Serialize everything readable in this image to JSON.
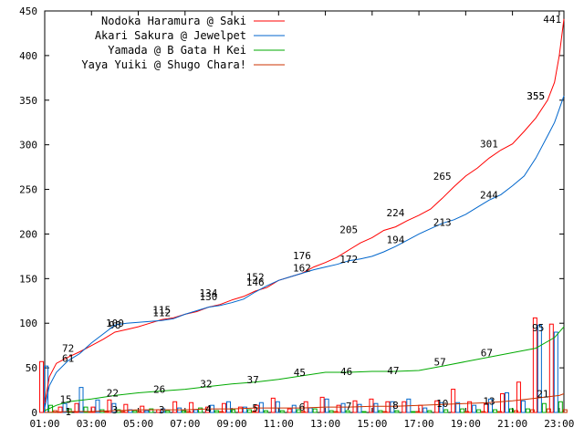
{
  "chart_data": {
    "type": "line",
    "title": "",
    "xlabel": "",
    "ylabel": "",
    "ylim": [
      0,
      450
    ],
    "yticks": [
      0,
      50,
      100,
      150,
      200,
      250,
      300,
      350,
      400,
      450
    ],
    "xlim": [
      1,
      23.2
    ],
    "xticks": [
      {
        "t": 1,
        "label": "01:00"
      },
      {
        "t": 3,
        "label": "03:00"
      },
      {
        "t": 5,
        "label": "05:00"
      },
      {
        "t": 7,
        "label": "07:00"
      },
      {
        "t": 9,
        "label": "09:00"
      },
      {
        "t": 11,
        "label": "11:00"
      },
      {
        "t": 13,
        "label": "13:00"
      },
      {
        "t": 15,
        "label": "15:00"
      },
      {
        "t": 17,
        "label": "17:00"
      },
      {
        "t": 19,
        "label": "19:00"
      },
      {
        "t": 21,
        "label": "21:00"
      },
      {
        "t": 23,
        "label": "23:00"
      }
    ],
    "grid": false,
    "legend_position": "top-left",
    "series": [
      {
        "name": "Nodoka Haramura @ Saki",
        "color": "#ff0000",
        "points": [
          [
            1.0,
            10
          ],
          [
            1.2,
            40
          ],
          [
            1.5,
            55
          ],
          [
            2.0,
            62
          ],
          [
            2.5,
            68
          ],
          [
            3.0,
            75
          ],
          [
            3.5,
            82
          ],
          [
            4.0,
            90
          ],
          [
            4.5,
            93
          ],
          [
            5.0,
            96
          ],
          [
            5.5,
            100
          ],
          [
            6.0,
            104
          ],
          [
            6.5,
            106
          ],
          [
            7.0,
            110
          ],
          [
            7.5,
            113
          ],
          [
            8.0,
            118
          ],
          [
            8.5,
            121
          ],
          [
            9.0,
            126
          ],
          [
            9.5,
            130
          ],
          [
            10.0,
            136
          ],
          [
            10.5,
            140
          ],
          [
            11.0,
            148
          ],
          [
            11.5,
            152
          ],
          [
            12.0,
            156
          ],
          [
            12.5,
            163
          ],
          [
            13.0,
            168
          ],
          [
            13.5,
            174
          ],
          [
            14.0,
            182
          ],
          [
            14.5,
            190
          ],
          [
            15.0,
            196
          ],
          [
            15.5,
            204
          ],
          [
            16.0,
            208
          ],
          [
            16.5,
            215
          ],
          [
            17.0,
            221
          ],
          [
            17.5,
            228
          ],
          [
            18.0,
            240
          ],
          [
            18.5,
            253
          ],
          [
            19.0,
            265
          ],
          [
            19.5,
            274
          ],
          [
            20.0,
            285
          ],
          [
            20.5,
            294
          ],
          [
            21.0,
            301
          ],
          [
            21.5,
            315
          ],
          [
            22.0,
            330
          ],
          [
            22.5,
            350
          ],
          [
            22.8,
            370
          ],
          [
            23.0,
            400
          ],
          [
            23.2,
            441
          ]
        ],
        "labels": [
          [
            2.0,
            72
          ],
          [
            4.0,
            98
          ],
          [
            6.0,
            115
          ],
          [
            8.0,
            134
          ],
          [
            10.0,
            152
          ],
          [
            12.0,
            176
          ],
          [
            14.0,
            205
          ],
          [
            16.0,
            224
          ],
          [
            18.0,
            265
          ],
          [
            20.0,
            301
          ],
          [
            22.0,
            355
          ],
          [
            22.7,
            441
          ]
        ]
      },
      {
        "name": "Akari Sakura @ Jewelpet",
        "color": "#0066cc",
        "points": [
          [
            1.0,
            5
          ],
          [
            1.2,
            30
          ],
          [
            1.5,
            45
          ],
          [
            2.0,
            58
          ],
          [
            2.5,
            66
          ],
          [
            3.0,
            78
          ],
          [
            3.5,
            88
          ],
          [
            4.0,
            98
          ],
          [
            4.5,
            100
          ],
          [
            5.0,
            101
          ],
          [
            5.5,
            102
          ],
          [
            6.0,
            103
          ],
          [
            6.5,
            105
          ],
          [
            7.0,
            110
          ],
          [
            7.5,
            114
          ],
          [
            8.0,
            118
          ],
          [
            8.5,
            120
          ],
          [
            9.0,
            123
          ],
          [
            9.5,
            127
          ],
          [
            10.0,
            135
          ],
          [
            10.5,
            142
          ],
          [
            11.0,
            148
          ],
          [
            11.5,
            152
          ],
          [
            12.0,
            156
          ],
          [
            12.5,
            160
          ],
          [
            13.0,
            163
          ],
          [
            13.5,
            166
          ],
          [
            14.0,
            170
          ],
          [
            14.5,
            172
          ],
          [
            15.0,
            175
          ],
          [
            15.5,
            180
          ],
          [
            16.0,
            186
          ],
          [
            16.5,
            193
          ],
          [
            17.0,
            200
          ],
          [
            17.5,
            206
          ],
          [
            18.0,
            212
          ],
          [
            18.5,
            216
          ],
          [
            19.0,
            222
          ],
          [
            19.5,
            230
          ],
          [
            20.0,
            238
          ],
          [
            20.5,
            244
          ],
          [
            21.0,
            254
          ],
          [
            21.5,
            265
          ],
          [
            22.0,
            285
          ],
          [
            22.5,
            310
          ],
          [
            22.8,
            325
          ],
          [
            23.0,
            340
          ],
          [
            23.2,
            355
          ]
        ],
        "labels": [
          [
            2.0,
            61
          ],
          [
            4.0,
            100
          ],
          [
            6.0,
            112
          ],
          [
            8.0,
            130
          ],
          [
            10.0,
            146
          ],
          [
            12.0,
            162
          ],
          [
            14.0,
            172
          ],
          [
            16.0,
            194
          ],
          [
            18.0,
            213
          ],
          [
            20.0,
            244
          ],
          [
            22.0,
            355
          ]
        ]
      },
      {
        "name": "Yamada @ B Gata H Kei",
        "color": "#00aa00",
        "points": [
          [
            1.0,
            2
          ],
          [
            1.5,
            8
          ],
          [
            2.0,
            12
          ],
          [
            3.0,
            15
          ],
          [
            4.0,
            19
          ],
          [
            5.0,
            22
          ],
          [
            6.0,
            24
          ],
          [
            7.0,
            26
          ],
          [
            8.0,
            29
          ],
          [
            9.0,
            32
          ],
          [
            10.0,
            34
          ],
          [
            11.0,
            37
          ],
          [
            12.0,
            41
          ],
          [
            13.0,
            45
          ],
          [
            14.0,
            45
          ],
          [
            15.0,
            46
          ],
          [
            16.0,
            46
          ],
          [
            17.0,
            47
          ],
          [
            18.0,
            52
          ],
          [
            19.0,
            57
          ],
          [
            20.0,
            62
          ],
          [
            21.0,
            67
          ],
          [
            22.0,
            72
          ],
          [
            22.8,
            84
          ],
          [
            23.2,
            96
          ]
        ],
        "labels": [
          [
            1.9,
            15
          ],
          [
            3.9,
            22
          ],
          [
            5.9,
            26
          ],
          [
            7.9,
            32
          ],
          [
            9.9,
            37
          ],
          [
            11.9,
            45
          ],
          [
            13.9,
            46
          ],
          [
            15.9,
            47
          ],
          [
            17.9,
            57
          ],
          [
            19.9,
            67
          ],
          [
            22.1,
            95
          ]
        ]
      },
      {
        "name": "Yaya Yuiki @ Shugo Chara!",
        "color": "#cc3300",
        "points": [
          [
            1.0,
            0
          ],
          [
            2.0,
            1
          ],
          [
            3.0,
            1
          ],
          [
            4.0,
            2
          ],
          [
            5.0,
            3
          ],
          [
            6.0,
            3
          ],
          [
            7.0,
            3
          ],
          [
            8.0,
            4
          ],
          [
            9.0,
            4
          ],
          [
            10.0,
            5
          ],
          [
            11.0,
            5
          ],
          [
            12.0,
            5
          ],
          [
            13.0,
            6
          ],
          [
            14.0,
            6
          ],
          [
            15.0,
            7
          ],
          [
            16.0,
            7
          ],
          [
            17.0,
            8
          ],
          [
            18.0,
            9
          ],
          [
            19.0,
            10
          ],
          [
            20.0,
            11
          ],
          [
            21.0,
            13
          ],
          [
            22.0,
            16
          ],
          [
            23.0,
            19
          ],
          [
            23.2,
            21
          ]
        ],
        "labels": [
          [
            2.0,
            1
          ],
          [
            4.0,
            3
          ],
          [
            6.0,
            3
          ],
          [
            8.0,
            4
          ],
          [
            10.0,
            5
          ],
          [
            12.0,
            6
          ],
          [
            14.0,
            7
          ],
          [
            16.0,
            8
          ],
          [
            18.0,
            10
          ],
          [
            20.0,
            13
          ],
          [
            22.3,
            21
          ]
        ]
      }
    ],
    "bars": {
      "note": "hourly increments per series shown as outlined bars at bottom",
      "groups": [
        {
          "t": 1.1,
          "values": [
            57,
            52,
            8,
            2
          ]
        },
        {
          "t": 1.9,
          "values": [
            6,
            10,
            4,
            0
          ]
        },
        {
          "t": 2.6,
          "values": [
            10,
            28,
            6,
            1
          ]
        },
        {
          "t": 3.3,
          "values": [
            6,
            14,
            3,
            1
          ]
        },
        {
          "t": 4.0,
          "values": [
            14,
            10,
            3,
            1
          ]
        },
        {
          "t": 4.7,
          "values": [
            9,
            3,
            2,
            1
          ]
        },
        {
          "t": 5.4,
          "values": [
            7,
            2,
            4,
            0
          ]
        },
        {
          "t": 6.1,
          "values": [
            3,
            4,
            2,
            0
          ]
        },
        {
          "t": 6.8,
          "values": [
            12,
            5,
            2,
            1
          ]
        },
        {
          "t": 7.5,
          "values": [
            11,
            3,
            5,
            0
          ]
        },
        {
          "t": 8.2,
          "values": [
            6,
            8,
            2,
            1
          ]
        },
        {
          "t": 8.9,
          "values": [
            10,
            12,
            3,
            0
          ]
        },
        {
          "t": 9.6,
          "values": [
            6,
            6,
            3,
            1
          ]
        },
        {
          "t": 10.3,
          "values": [
            8,
            11,
            2,
            0
          ]
        },
        {
          "t": 11.0,
          "values": [
            16,
            12,
            2,
            0
          ]
        },
        {
          "t": 11.7,
          "values": [
            4,
            8,
            3,
            1
          ]
        },
        {
          "t": 12.4,
          "values": [
            12,
            5,
            4,
            0
          ]
        },
        {
          "t": 13.1,
          "values": [
            17,
            15,
            2,
            1
          ]
        },
        {
          "t": 13.8,
          "values": [
            8,
            10,
            2,
            0
          ]
        },
        {
          "t": 14.5,
          "values": [
            13,
            9,
            1,
            0
          ]
        },
        {
          "t": 15.2,
          "values": [
            15,
            10,
            2,
            1
          ]
        },
        {
          "t": 15.9,
          "values": [
            12,
            12,
            2,
            0
          ]
        },
        {
          "t": 16.6,
          "values": [
            12,
            15,
            1,
            1
          ]
        },
        {
          "t": 17.3,
          "values": [
            8,
            5,
            2,
            0
          ]
        },
        {
          "t": 18.0,
          "values": [
            13,
            11,
            3,
            0
          ]
        },
        {
          "t": 18.7,
          "values": [
            26,
            11,
            4,
            1
          ]
        },
        {
          "t": 19.4,
          "values": [
            12,
            8,
            3,
            1
          ]
        },
        {
          "t": 20.1,
          "values": [
            10,
            15,
            3,
            1
          ]
        },
        {
          "t": 20.8,
          "values": [
            21,
            22,
            4,
            2
          ]
        },
        {
          "t": 21.5,
          "values": [
            34,
            13,
            4,
            3
          ]
        },
        {
          "t": 22.2,
          "values": [
            106,
            98,
            10,
            4
          ]
        },
        {
          "t": 22.9,
          "values": [
            99,
            90,
            12,
            3
          ]
        }
      ]
    }
  }
}
